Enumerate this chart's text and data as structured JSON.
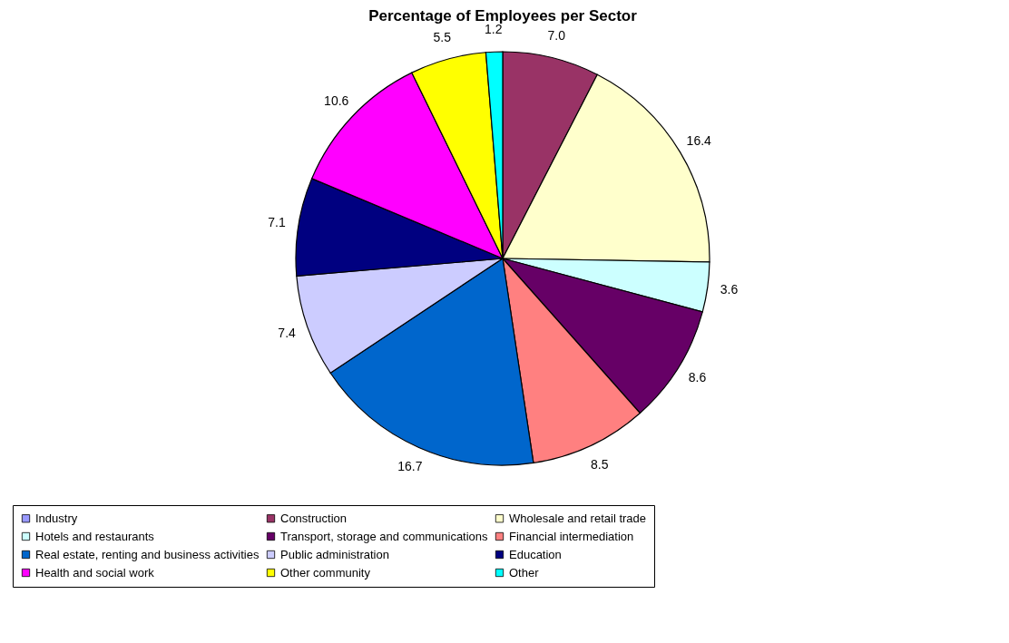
{
  "chart_data": {
    "type": "pie",
    "title": "Percentage of Employees per Sector",
    "categories": [
      "Industry",
      "Construction",
      "Wholesale and retail trade",
      "Hotels and restaurants",
      "Transport, storage and communications",
      "Financial intermediation",
      "Real estate, renting and business activities",
      "Public administration",
      "Education",
      "Health and social work",
      "Other community",
      "Other"
    ],
    "values": [
      0,
      7.0,
      16.4,
      3.6,
      8.6,
      8.5,
      16.7,
      7.4,
      7.1,
      10.6,
      5.5,
      1.2
    ],
    "value_labels": [
      null,
      "7.0",
      "16.4",
      "3.6",
      "8.6",
      "8.5",
      "16.7",
      "7.4",
      "7.1",
      "10.6",
      "5.5",
      "1.2"
    ],
    "colors": [
      "#9999ff",
      "#993366",
      "#ffffcc",
      "#ccffff",
      "#660066",
      "#ff8080",
      "#0066cc",
      "#ccccff",
      "#000080",
      "#ff00ff",
      "#ffff00",
      "#00ffff"
    ],
    "legend": "bottom"
  }
}
